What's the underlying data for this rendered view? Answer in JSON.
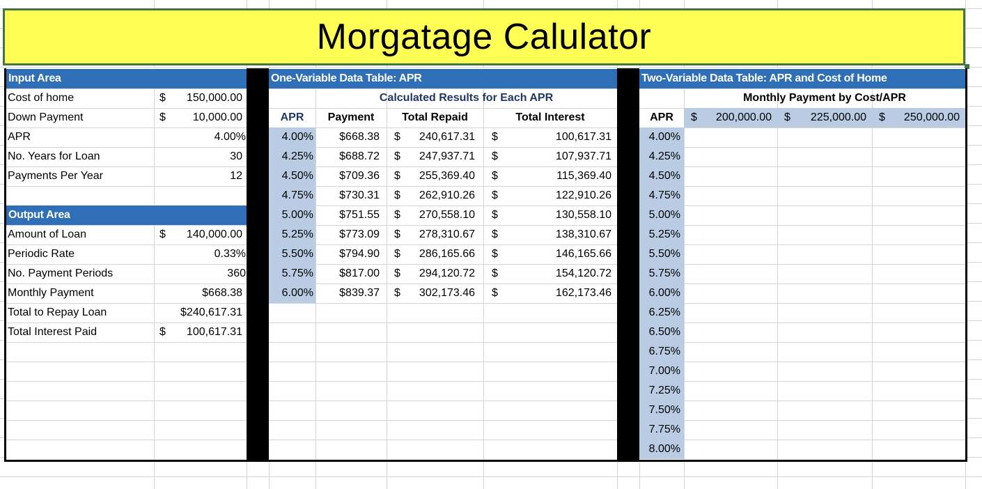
{
  "title": "Morgatage Calulator",
  "colors": {
    "title_bg": "#ffff55",
    "title_border": "#427448",
    "header_bg": "#2e6fb7",
    "apr_bg": "#b9cce3"
  },
  "input_area": {
    "heading": "Input Area",
    "rows": [
      {
        "label": "Cost of home",
        "cur": "$",
        "value": "150,000.00"
      },
      {
        "label": "Down Payment",
        "cur": "$",
        "value": "10,000.00"
      },
      {
        "label": "APR",
        "cur": "",
        "value": "4.00%"
      },
      {
        "label": "No. Years for Loan",
        "cur": "",
        "value": "30"
      },
      {
        "label": "Payments Per Year",
        "cur": "",
        "value": "12"
      }
    ]
  },
  "output_area": {
    "heading": "Output Area",
    "rows": [
      {
        "label": "Amount of Loan",
        "cur": "$",
        "value": "140,000.00"
      },
      {
        "label": "Periodic Rate",
        "cur": "",
        "value": "0.33%"
      },
      {
        "label": "No. Payment Periods",
        "cur": "",
        "value": "360"
      },
      {
        "label": "Monthly Payment",
        "cur": "",
        "value": "$668.38"
      },
      {
        "label": "Total to Repay Loan",
        "cur": "",
        "value": "$240,617.31"
      },
      {
        "label": "Total Interest Paid",
        "cur": "$",
        "value": "100,617.31"
      }
    ]
  },
  "one_var": {
    "heading": "One-Variable Data Table: APR",
    "subheading": "Calculated Results for Each APR",
    "columns": [
      "APR",
      "Payment",
      "Total Repaid",
      "Total Interest"
    ],
    "rows": [
      {
        "apr": "4.00%",
        "payment": "$668.38",
        "repaid": "240,617.31",
        "interest": "100,617.31"
      },
      {
        "apr": "4.25%",
        "payment": "$688.72",
        "repaid": "247,937.71",
        "interest": "107,937.71"
      },
      {
        "apr": "4.50%",
        "payment": "$709.36",
        "repaid": "255,369.40",
        "interest": "115,369.40"
      },
      {
        "apr": "4.75%",
        "payment": "$730.31",
        "repaid": "262,910.26",
        "interest": "122,910.26"
      },
      {
        "apr": "5.00%",
        "payment": "$751.55",
        "repaid": "270,558.10",
        "interest": "130,558.10"
      },
      {
        "apr": "5.25%",
        "payment": "$773.09",
        "repaid": "278,310.67",
        "interest": "138,310.67"
      },
      {
        "apr": "5.50%",
        "payment": "$794.90",
        "repaid": "286,165.66",
        "interest": "146,165.66"
      },
      {
        "apr": "5.75%",
        "payment": "$817.00",
        "repaid": "294,120.72",
        "interest": "154,120.72"
      },
      {
        "apr": "6.00%",
        "payment": "$839.37",
        "repaid": "302,173.46",
        "interest": "162,173.46"
      }
    ]
  },
  "two_var": {
    "heading": "Two-Variable Data Table: APR and Cost of Home",
    "subheading": "Monthly Payment by Cost/APR",
    "apr_label": "APR",
    "costs": [
      "200,000.00",
      "225,000.00",
      "250,000.00"
    ],
    "aprs": [
      "4.00%",
      "4.25%",
      "4.50%",
      "4.75%",
      "5.00%",
      "5.25%",
      "5.50%",
      "5.75%",
      "6.00%",
      "6.25%",
      "6.50%",
      "6.75%",
      "7.00%",
      "7.25%",
      "7.50%",
      "7.75%",
      "8.00%"
    ]
  }
}
